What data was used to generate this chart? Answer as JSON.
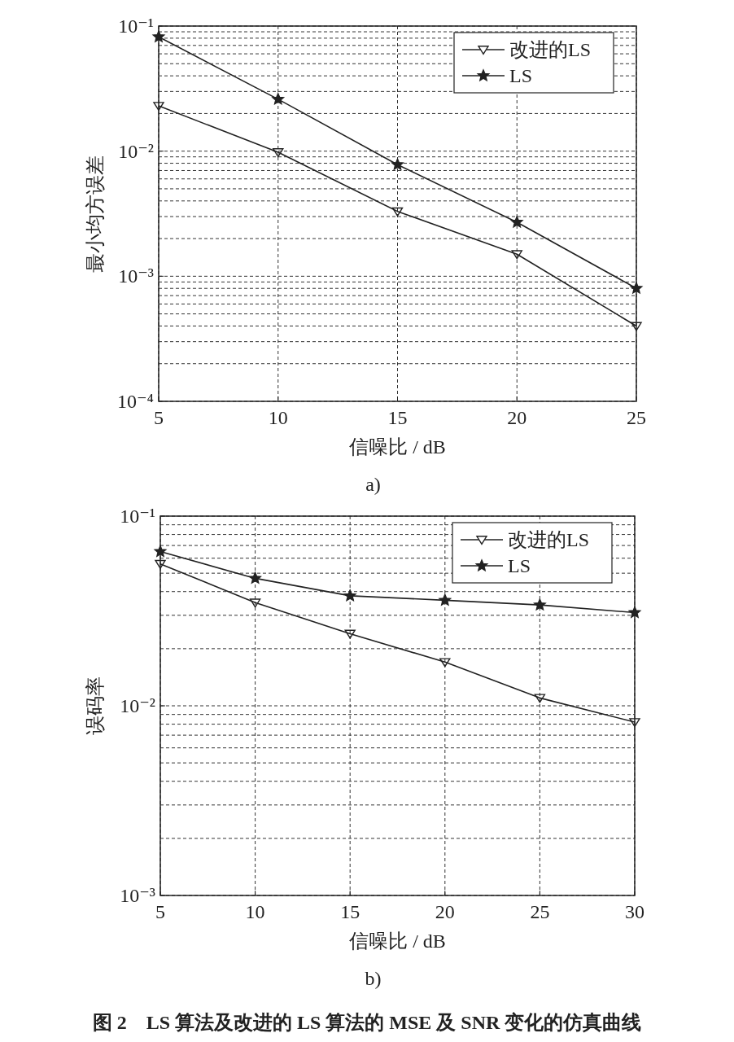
{
  "chart_data": [
    {
      "type": "line",
      "xlabel": "信噪比 / dB",
      "ylabel": "最小均方误差",
      "log": true,
      "grid": true,
      "legend": "top right",
      "x": [
        5,
        10,
        15,
        20,
        25
      ],
      "xlim": [
        5,
        25
      ],
      "xticks": [
        5,
        10,
        15,
        20,
        25
      ],
      "ylim": [
        0.0001,
        0.1
      ],
      "yticks": [
        {
          "value": 0.0001,
          "label": "10⁻⁴"
        },
        {
          "value": 0.001,
          "label": "10⁻³"
        },
        {
          "value": 0.01,
          "label": "10⁻²"
        },
        {
          "value": 0.1,
          "label": "10⁻¹"
        }
      ],
      "series": [
        {
          "name": "改进的LS",
          "color": "#222222",
          "marker": "triangle",
          "line_style": "solid",
          "values": [
            0.023,
            0.0098,
            0.0033,
            0.0015,
            0.0004
          ]
        },
        {
          "name": "LS",
          "color": "#222222",
          "marker": "star",
          "line_style": "solid",
          "values": [
            0.082,
            0.026,
            0.0078,
            0.0027,
            0.0008
          ]
        }
      ],
      "annotations": [
        "a)"
      ]
    },
    {
      "type": "line",
      "xlabel": "信噪比 / dB",
      "ylabel": "误码率",
      "log": true,
      "grid": true,
      "legend": "top right",
      "x": [
        5,
        10,
        15,
        20,
        25,
        30
      ],
      "xlim": [
        5,
        30
      ],
      "xticks": [
        5,
        10,
        15,
        20,
        25,
        30
      ],
      "ylim": [
        0.001,
        0.1
      ],
      "yticks": [
        {
          "value": 0.001,
          "label": "10⁻³"
        },
        {
          "value": 0.01,
          "label": "10⁻²"
        },
        {
          "value": 0.1,
          "label": "10⁻¹"
        }
      ],
      "series": [
        {
          "name": "改进的LS",
          "color": "#222222",
          "marker": "triangle",
          "line_style": "solid",
          "values": [
            0.056,
            0.035,
            0.024,
            0.017,
            0.011,
            0.0082
          ]
        },
        {
          "name": "LS",
          "color": "#222222",
          "marker": "star",
          "line_style": "solid",
          "values": [
            0.065,
            0.047,
            0.038,
            0.036,
            0.034,
            0.031
          ]
        }
      ],
      "annotations": [
        "b)",
        "图 2　LS 算法及改进的 LS 算法的 MSE 及 SNR 变化的仿真曲线"
      ]
    }
  ]
}
